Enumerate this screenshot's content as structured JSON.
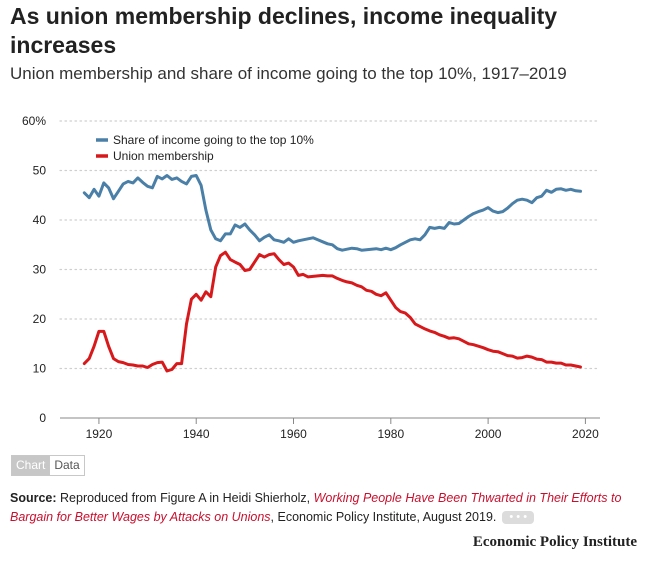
{
  "header": {
    "title": "As union membership declines, income inequality increases",
    "subtitle": "Union membership and share of income going to the top 10%, 1917–2019"
  },
  "toggle": {
    "chart_label": "Chart",
    "data_label": "Data"
  },
  "source": {
    "label": "Source:",
    "prefix": " Reproduced from Figure A in Heidi Shierholz, ",
    "link_text": "Working People Have Been Thwarted in Their Efforts to Bargain for Better Wages by Attacks on Unions",
    "suffix": ", Economic Policy Institute, August 2019.",
    "more_label": "• • •"
  },
  "brand": {
    "name": "Economic Policy Institute"
  },
  "colors": {
    "top10": "#4a7fa7",
    "union": "#d7191c",
    "grid": "#cfcfcf"
  },
  "chart_data": {
    "type": "line",
    "xlim": [
      1912,
      2023
    ],
    "ylim": [
      0,
      60
    ],
    "x_ticks": [
      1920,
      1940,
      1960,
      1980,
      2000,
      2020
    ],
    "y_ticks": [
      0,
      10,
      20,
      30,
      40,
      50,
      60
    ],
    "y_tick_labels": [
      "0",
      "10",
      "20",
      "30",
      "40",
      "50",
      "60%"
    ],
    "grid": "horizontal-dotted",
    "legend_position": "top-left",
    "series": [
      {
        "name": "Share of income going to the top 10%",
        "color": "#4a7fa7",
        "points": [
          [
            1917,
            45.5
          ],
          [
            1918,
            44.5
          ],
          [
            1919,
            46.2
          ],
          [
            1920,
            44.8
          ],
          [
            1921,
            47.5
          ],
          [
            1922,
            46.5
          ],
          [
            1923,
            44.3
          ],
          [
            1924,
            45.8
          ],
          [
            1925,
            47.3
          ],
          [
            1926,
            47.8
          ],
          [
            1927,
            47.5
          ],
          [
            1928,
            48.5
          ],
          [
            1929,
            47.6
          ],
          [
            1930,
            46.8
          ],
          [
            1931,
            46.5
          ],
          [
            1932,
            48.8
          ],
          [
            1933,
            48.3
          ],
          [
            1934,
            49.0
          ],
          [
            1935,
            48.2
          ],
          [
            1936,
            48.5
          ],
          [
            1937,
            47.8
          ],
          [
            1938,
            47.3
          ],
          [
            1939,
            48.8
          ],
          [
            1940,
            49.0
          ],
          [
            1941,
            47.0
          ],
          [
            1942,
            42.0
          ],
          [
            1943,
            38.0
          ],
          [
            1944,
            36.2
          ],
          [
            1945,
            35.8
          ],
          [
            1946,
            37.2
          ],
          [
            1947,
            37.2
          ],
          [
            1948,
            39.0
          ],
          [
            1949,
            38.5
          ],
          [
            1950,
            39.2
          ],
          [
            1951,
            38.0
          ],
          [
            1952,
            37.0
          ],
          [
            1953,
            35.8
          ],
          [
            1954,
            36.5
          ],
          [
            1955,
            37.0
          ],
          [
            1956,
            36.0
          ],
          [
            1957,
            35.8
          ],
          [
            1958,
            35.5
          ],
          [
            1959,
            36.2
          ],
          [
            1960,
            35.5
          ],
          [
            1961,
            35.8
          ],
          [
            1962,
            36.0
          ],
          [
            1963,
            36.2
          ],
          [
            1964,
            36.4
          ],
          [
            1965,
            36.0
          ],
          [
            1966,
            35.6
          ],
          [
            1967,
            35.2
          ],
          [
            1968,
            35.0
          ],
          [
            1969,
            34.2
          ],
          [
            1970,
            33.9
          ],
          [
            1971,
            34.1
          ],
          [
            1972,
            34.3
          ],
          [
            1973,
            34.2
          ],
          [
            1974,
            33.9
          ],
          [
            1975,
            34.0
          ],
          [
            1976,
            34.1
          ],
          [
            1977,
            34.2
          ],
          [
            1978,
            34.0
          ],
          [
            1979,
            34.3
          ],
          [
            1980,
            34.0
          ],
          [
            1981,
            34.4
          ],
          [
            1982,
            35.0
          ],
          [
            1983,
            35.5
          ],
          [
            1984,
            36.0
          ],
          [
            1985,
            36.2
          ],
          [
            1986,
            36.0
          ],
          [
            1987,
            37.0
          ],
          [
            1988,
            38.5
          ],
          [
            1989,
            38.3
          ],
          [
            1990,
            38.5
          ],
          [
            1991,
            38.3
          ],
          [
            1992,
            39.5
          ],
          [
            1993,
            39.2
          ],
          [
            1994,
            39.3
          ],
          [
            1995,
            40.0
          ],
          [
            1996,
            40.7
          ],
          [
            1997,
            41.3
          ],
          [
            1998,
            41.7
          ],
          [
            1999,
            42.0
          ],
          [
            2000,
            42.5
          ],
          [
            2001,
            41.8
          ],
          [
            2002,
            41.5
          ],
          [
            2003,
            41.7
          ],
          [
            2004,
            42.4
          ],
          [
            2005,
            43.3
          ],
          [
            2006,
            44.0
          ],
          [
            2007,
            44.2
          ],
          [
            2008,
            44.0
          ],
          [
            2009,
            43.5
          ],
          [
            2010,
            44.5
          ],
          [
            2011,
            44.8
          ],
          [
            2012,
            46.0
          ],
          [
            2013,
            45.6
          ],
          [
            2014,
            46.2
          ],
          [
            2015,
            46.3
          ],
          [
            2016,
            46.0
          ],
          [
            2017,
            46.2
          ],
          [
            2018,
            45.9
          ],
          [
            2019,
            45.8
          ]
        ]
      },
      {
        "name": "Union membership",
        "color": "#d7191c",
        "points": [
          [
            1917,
            11.0
          ],
          [
            1918,
            12.0
          ],
          [
            1919,
            14.5
          ],
          [
            1920,
            17.5
          ],
          [
            1921,
            17.5
          ],
          [
            1922,
            14.5
          ],
          [
            1923,
            12.0
          ],
          [
            1924,
            11.4
          ],
          [
            1925,
            11.2
          ],
          [
            1926,
            10.8
          ],
          [
            1927,
            10.7
          ],
          [
            1928,
            10.5
          ],
          [
            1929,
            10.5
          ],
          [
            1930,
            10.2
          ],
          [
            1931,
            10.8
          ],
          [
            1932,
            11.2
          ],
          [
            1933,
            11.3
          ],
          [
            1934,
            9.5
          ],
          [
            1935,
            9.8
          ],
          [
            1936,
            11.0
          ],
          [
            1937,
            11.0
          ],
          [
            1938,
            19.0
          ],
          [
            1939,
            24.0
          ],
          [
            1940,
            25.0
          ],
          [
            1941,
            23.8
          ],
          [
            1942,
            25.5
          ],
          [
            1943,
            24.5
          ],
          [
            1944,
            30.5
          ],
          [
            1945,
            32.8
          ],
          [
            1946,
            33.5
          ],
          [
            1947,
            32.0
          ],
          [
            1948,
            31.5
          ],
          [
            1949,
            31.0
          ],
          [
            1950,
            29.8
          ],
          [
            1951,
            30.0
          ],
          [
            1952,
            31.5
          ],
          [
            1953,
            33.0
          ],
          [
            1954,
            32.5
          ],
          [
            1955,
            33.0
          ],
          [
            1956,
            33.2
          ],
          [
            1957,
            32.0
          ],
          [
            1958,
            31.0
          ],
          [
            1959,
            31.3
          ],
          [
            1960,
            30.5
          ],
          [
            1961,
            28.8
          ],
          [
            1962,
            29.0
          ],
          [
            1963,
            28.5
          ],
          [
            1964,
            28.6
          ],
          [
            1965,
            28.7
          ],
          [
            1966,
            28.8
          ],
          [
            1967,
            28.7
          ],
          [
            1968,
            28.7
          ],
          [
            1969,
            28.2
          ],
          [
            1970,
            27.8
          ],
          [
            1971,
            27.5
          ],
          [
            1972,
            27.3
          ],
          [
            1973,
            26.8
          ],
          [
            1974,
            26.5
          ],
          [
            1975,
            25.8
          ],
          [
            1976,
            25.6
          ],
          [
            1977,
            25.0
          ],
          [
            1978,
            24.7
          ],
          [
            1979,
            25.3
          ],
          [
            1980,
            23.8
          ],
          [
            1981,
            22.3
          ],
          [
            1982,
            21.5
          ],
          [
            1983,
            21.2
          ],
          [
            1984,
            20.3
          ],
          [
            1985,
            19.0
          ],
          [
            1986,
            18.5
          ],
          [
            1987,
            18.0
          ],
          [
            1988,
            17.6
          ],
          [
            1989,
            17.3
          ],
          [
            1990,
            16.8
          ],
          [
            1991,
            16.5
          ],
          [
            1992,
            16.1
          ],
          [
            1993,
            16.2
          ],
          [
            1994,
            16.0
          ],
          [
            1995,
            15.5
          ],
          [
            1996,
            15.0
          ],
          [
            1997,
            14.8
          ],
          [
            1998,
            14.5
          ],
          [
            1999,
            14.2
          ],
          [
            2000,
            13.8
          ],
          [
            2001,
            13.5
          ],
          [
            2002,
            13.4
          ],
          [
            2003,
            13.0
          ],
          [
            2004,
            12.6
          ],
          [
            2005,
            12.5
          ],
          [
            2006,
            12.1
          ],
          [
            2007,
            12.2
          ],
          [
            2008,
            12.5
          ],
          [
            2009,
            12.3
          ],
          [
            2010,
            11.9
          ],
          [
            2011,
            11.8
          ],
          [
            2012,
            11.3
          ],
          [
            2013,
            11.3
          ],
          [
            2014,
            11.1
          ],
          [
            2015,
            11.1
          ],
          [
            2016,
            10.7
          ],
          [
            2017,
            10.7
          ],
          [
            2018,
            10.5
          ],
          [
            2019,
            10.3
          ]
        ]
      }
    ]
  }
}
